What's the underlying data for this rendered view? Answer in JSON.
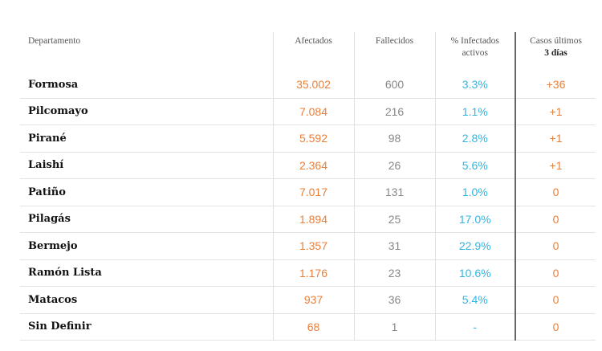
{
  "headers": {
    "departamento": "Departamento",
    "afectados": "Afectados",
    "fallecidos": "Fallecidos",
    "infectados_1": "% Infectados",
    "infectados_2": "activos",
    "casos_1": "Casos últimos",
    "casos_2": "3 días"
  },
  "rows": [
    {
      "name": "Formosa",
      "afectados": "35.002",
      "fallecidos": "600",
      "pct": "3.3%",
      "casos": "+36"
    },
    {
      "name": "Pilcomayo",
      "afectados": "7.084",
      "fallecidos": "216",
      "pct": "1.1%",
      "casos": "+1"
    },
    {
      "name": "Pirané",
      "afectados": "5.592",
      "fallecidos": "98",
      "pct": "2.8%",
      "casos": "+1"
    },
    {
      "name": "Laishí",
      "afectados": "2.364",
      "fallecidos": "26",
      "pct": "5.6%",
      "casos": "+1"
    },
    {
      "name": "Patiño",
      "afectados": "7.017",
      "fallecidos": "131",
      "pct": "1.0%",
      "casos": "0"
    },
    {
      "name": "Pilagás",
      "afectados": "1.894",
      "fallecidos": "25",
      "pct": "17.0%",
      "casos": "0"
    },
    {
      "name": "Bermejo",
      "afectados": "1.357",
      "fallecidos": "31",
      "pct": "22.9%",
      "casos": "0"
    },
    {
      "name": "Ramón Lista",
      "afectados": "1.176",
      "fallecidos": "23",
      "pct": "10.6%",
      "casos": "0"
    },
    {
      "name": "Matacos",
      "afectados": "937",
      "fallecidos": "36",
      "pct": "5.4%",
      "casos": "0"
    },
    {
      "name": "Sin Definir",
      "afectados": "68",
      "fallecidos": "1",
      "pct": "-",
      "casos": "0"
    }
  ],
  "colors": {
    "afectados": "#e8803c",
    "fallecidos": "#888888",
    "pct": "#2fb7e4",
    "casos": "#e8803c"
  }
}
